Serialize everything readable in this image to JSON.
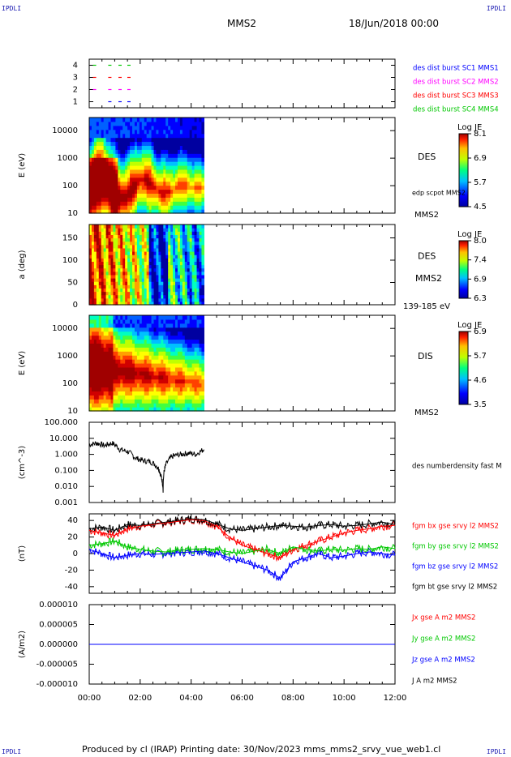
{
  "header": {
    "corner_tl": "IPDLI",
    "corner_tr": "IPDLI",
    "corner_bl": "IPDLI",
    "corner_br": "IPDLI",
    "title": "MMS2",
    "date": "18/Jun/2018 00:00"
  },
  "footer": {
    "produced": "Produced by cl (IRAP)   Printing date: 30/Nov/2023   mms_mms2_srvy_vue_web1.cl"
  },
  "time_axis": {
    "ticks": [
      "00:00",
      "02:00",
      "04:00",
      "06:00",
      "08:00",
      "10:00",
      "12:00"
    ]
  },
  "colors": {
    "blue": "#0000ff",
    "magenta": "#ff00ff",
    "red": "#ff0000",
    "green": "#00c800",
    "black": "#000000"
  },
  "chart_data": [
    {
      "type": "scatter",
      "panel": "availability",
      "ylabel": "",
      "ylim": [
        0.5,
        4.5
      ],
      "yticks": [
        "4",
        "3",
        "2",
        "1"
      ],
      "legend": [
        {
          "label": "des dist burst SC1 MMS1",
          "color": "#0000ff"
        },
        {
          "label": "des dist burst SC2 MMS2",
          "color": "#ff00ff"
        },
        {
          "label": "des dist burst SC3 MMS3",
          "color": "#ff0000"
        },
        {
          "label": "des dist burst SC4 MMS4",
          "color": "#00c800"
        }
      ],
      "series": [
        {
          "name": "des dist burst SC4 MMS4",
          "y": 4,
          "x": [
            0.05,
            0.65,
            1.05,
            1.4
          ],
          "color": "#00c800"
        },
        {
          "name": "des dist burst SC3 MMS3",
          "y": 3,
          "x": [
            0.05,
            0.65,
            1.05,
            1.4
          ],
          "color": "#ff0000"
        },
        {
          "name": "des dist burst SC2 MMS2",
          "y": 2,
          "x": [
            0.05,
            0.65,
            1.05,
            1.4
          ],
          "color": "#ff00ff"
        },
        {
          "name": "des dist burst SC1 MMS1",
          "y": 1,
          "x": [
            0.65,
            1.05,
            1.4
          ],
          "color": "#0000ff"
        }
      ]
    },
    {
      "type": "heatmap",
      "panel": "des-energy",
      "ylabel": "E (eV)",
      "yscale": "log",
      "ylim": [
        10,
        30000
      ],
      "yticks": [
        "10000",
        "1000",
        "100",
        "10"
      ],
      "ytick_values": [
        10000,
        1000,
        100,
        10
      ],
      "xlim_data": [
        0,
        4.5
      ],
      "right_label": "DES",
      "right_sublabel": "edp scpot MMS2",
      "bottom_right_label": "MMS2",
      "colorbar": {
        "title": "Log JE",
        "ticks": [
          "8.1",
          "6.9",
          "5.7",
          "4.5"
        ]
      }
    },
    {
      "type": "heatmap",
      "panel": "des-pitch",
      "ylabel": "a (deg)",
      "ylim": [
        0,
        180
      ],
      "yticks": [
        "150",
        "100",
        "50",
        "0"
      ],
      "ytick_values": [
        150,
        100,
        50,
        0
      ],
      "xlim_data": [
        0,
        4.5
      ],
      "right_label": "DES",
      "right_sublabel": "MMS2",
      "bottom_right_label": "139-185 eV",
      "colorbar": {
        "title": "Log JE",
        "ticks": [
          "8.0",
          "7.4",
          "6.9",
          "6.3"
        ]
      }
    },
    {
      "type": "heatmap",
      "panel": "dis-energy",
      "ylabel": "E (eV)",
      "yscale": "log",
      "ylim": [
        10,
        30000
      ],
      "yticks": [
        "10000",
        "1000",
        "100",
        "10"
      ],
      "ytick_values": [
        10000,
        1000,
        100,
        10
      ],
      "xlim_data": [
        0,
        4.5
      ],
      "right_label": "DIS",
      "bottom_right_label": "MMS2",
      "colorbar": {
        "title": "Log JE",
        "ticks": [
          "6.9",
          "5.7",
          "4.6",
          "3.5"
        ]
      }
    },
    {
      "type": "line",
      "panel": "density",
      "ylabel": "(cm^-3)",
      "yscale": "log",
      "ylim": [
        0.001,
        100
      ],
      "yticks": [
        "100.000",
        "10.000",
        "1.000",
        "0.100",
        "0.010",
        "0.001"
      ],
      "ytick_values": [
        100,
        10,
        1,
        0.1,
        0.01,
        0.001
      ],
      "legend": [
        {
          "label": "des numberdensity fast M",
          "color": "#000000"
        }
      ],
      "series": [
        {
          "name": "des numberdensity fast M",
          "color": "#000000",
          "x": [
            0.0,
            0.3,
            0.6,
            0.9,
            1.2,
            1.5,
            1.8,
            2.1,
            2.4,
            2.7,
            2.8,
            2.9,
            3.0,
            3.3,
            3.6,
            3.9,
            4.2,
            4.5
          ],
          "y": [
            4.0,
            5.0,
            3.5,
            5.0,
            2.0,
            1.5,
            0.6,
            0.4,
            0.35,
            0.15,
            0.05,
            0.006,
            0.2,
            0.8,
            1.0,
            1.2,
            1.0,
            2.0
          ]
        }
      ]
    },
    {
      "type": "line",
      "panel": "magnetic-field",
      "ylabel": "(nT)",
      "ylim": [
        -48,
        48
      ],
      "yticks": [
        "40",
        "20",
        "0",
        "-20",
        "-40"
      ],
      "ytick_values": [
        40,
        20,
        0,
        -20,
        -40
      ],
      "legend": [
        {
          "label": "fgm bx gse srvy l2 MMS2",
          "color": "#ff0000"
        },
        {
          "label": "fgm by gse srvy l2 MMS2",
          "color": "#00c800"
        },
        {
          "label": "fgm bz gse srvy l2 MMS2",
          "color": "#0000ff"
        },
        {
          "label": "fgm bt gse srvy l2 MMS2",
          "color": "#000000"
        }
      ],
      "series": [
        {
          "name": "fgm bt gse srvy l2 MMS2",
          "color": "#000000",
          "x": [
            0,
            0.5,
            1,
            1.5,
            2,
            2.5,
            3,
            3.5,
            4,
            4.5,
            5,
            5.5,
            6,
            6.5,
            7,
            7.5,
            8,
            8.5,
            9,
            9.5,
            10,
            10.5,
            11,
            11.5,
            12
          ],
          "y": [
            30,
            32,
            28,
            35,
            34,
            36,
            38,
            40,
            42,
            41,
            36,
            30,
            28,
            30,
            32,
            34,
            33,
            32,
            34,
            35,
            33,
            34,
            36,
            38,
            35
          ]
        },
        {
          "name": "fgm bx gse srvy l2 MMS2",
          "color": "#ff0000",
          "x": [
            0,
            0.5,
            1,
            1.5,
            2,
            2.5,
            3,
            3.5,
            4,
            4.5,
            5,
            5.5,
            6,
            6.5,
            7,
            7.5,
            8,
            8.5,
            9,
            9.5,
            10,
            10.5,
            11,
            11.5,
            12
          ],
          "y": [
            28,
            25,
            22,
            30,
            33,
            35,
            37,
            39,
            41,
            40,
            33,
            20,
            10,
            5,
            0,
            -5,
            5,
            10,
            15,
            20,
            25,
            28,
            30,
            33,
            34
          ]
        },
        {
          "name": "fgm by gse srvy l2 MMS2",
          "color": "#00c800",
          "x": [
            0,
            0.5,
            1,
            1.5,
            2,
            2.5,
            3,
            3.5,
            4,
            4.5,
            5,
            5.5,
            6,
            6.5,
            7,
            7.5,
            8,
            8.5,
            9,
            9.5,
            10,
            10.5,
            11,
            11.5,
            12
          ],
          "y": [
            10,
            12,
            15,
            8,
            5,
            3,
            2,
            4,
            5,
            6,
            5,
            2,
            0,
            3,
            5,
            0,
            8,
            5,
            3,
            5,
            4,
            6,
            5,
            8,
            6
          ]
        },
        {
          "name": "fgm bz gse srvy l2 MMS2",
          "color": "#0000ff",
          "x": [
            0,
            0.5,
            1,
            1.5,
            2,
            2.5,
            3,
            3.5,
            4,
            4.5,
            5,
            5.5,
            6,
            6.5,
            7,
            7.5,
            8,
            8.5,
            9,
            9.5,
            10,
            10.5,
            11,
            11.5,
            12
          ],
          "y": [
            5,
            0,
            -5,
            -2,
            0,
            -1,
            0,
            1,
            2,
            3,
            0,
            -5,
            -10,
            -15,
            -20,
            -30,
            -10,
            -5,
            0,
            -5,
            -3,
            0,
            2,
            0,
            -2
          ]
        }
      ]
    },
    {
      "type": "line",
      "panel": "current-density",
      "ylabel": "(A/m2)",
      "ylim": [
        -1e-05,
        1e-05
      ],
      "yticks": [
        "0.000010",
        "0.000005",
        "0.000000",
        "-0.000005",
        "-0.000010"
      ],
      "ytick_values": [
        1e-05,
        5e-06,
        0,
        -5e-06,
        -1e-05
      ],
      "legend": [
        {
          "label": "Jx gse A m2 MMS2",
          "color": "#ff0000"
        },
        {
          "label": "Jy gse A m2 MMS2",
          "color": "#00c800"
        },
        {
          "label": "Jz gse A m2 MMS2",
          "color": "#0000ff"
        },
        {
          "label": "J A m2 MMS2",
          "color": "#000000"
        }
      ],
      "series": [
        {
          "name": "J A m2 MMS2",
          "color": "#000000",
          "x": [
            0,
            12
          ],
          "y": [
            0,
            0
          ]
        },
        {
          "name": "Jz gse A m2 MMS2",
          "color": "#0000ff",
          "x": [
            0,
            12
          ],
          "y": [
            0,
            0
          ]
        }
      ]
    }
  ]
}
